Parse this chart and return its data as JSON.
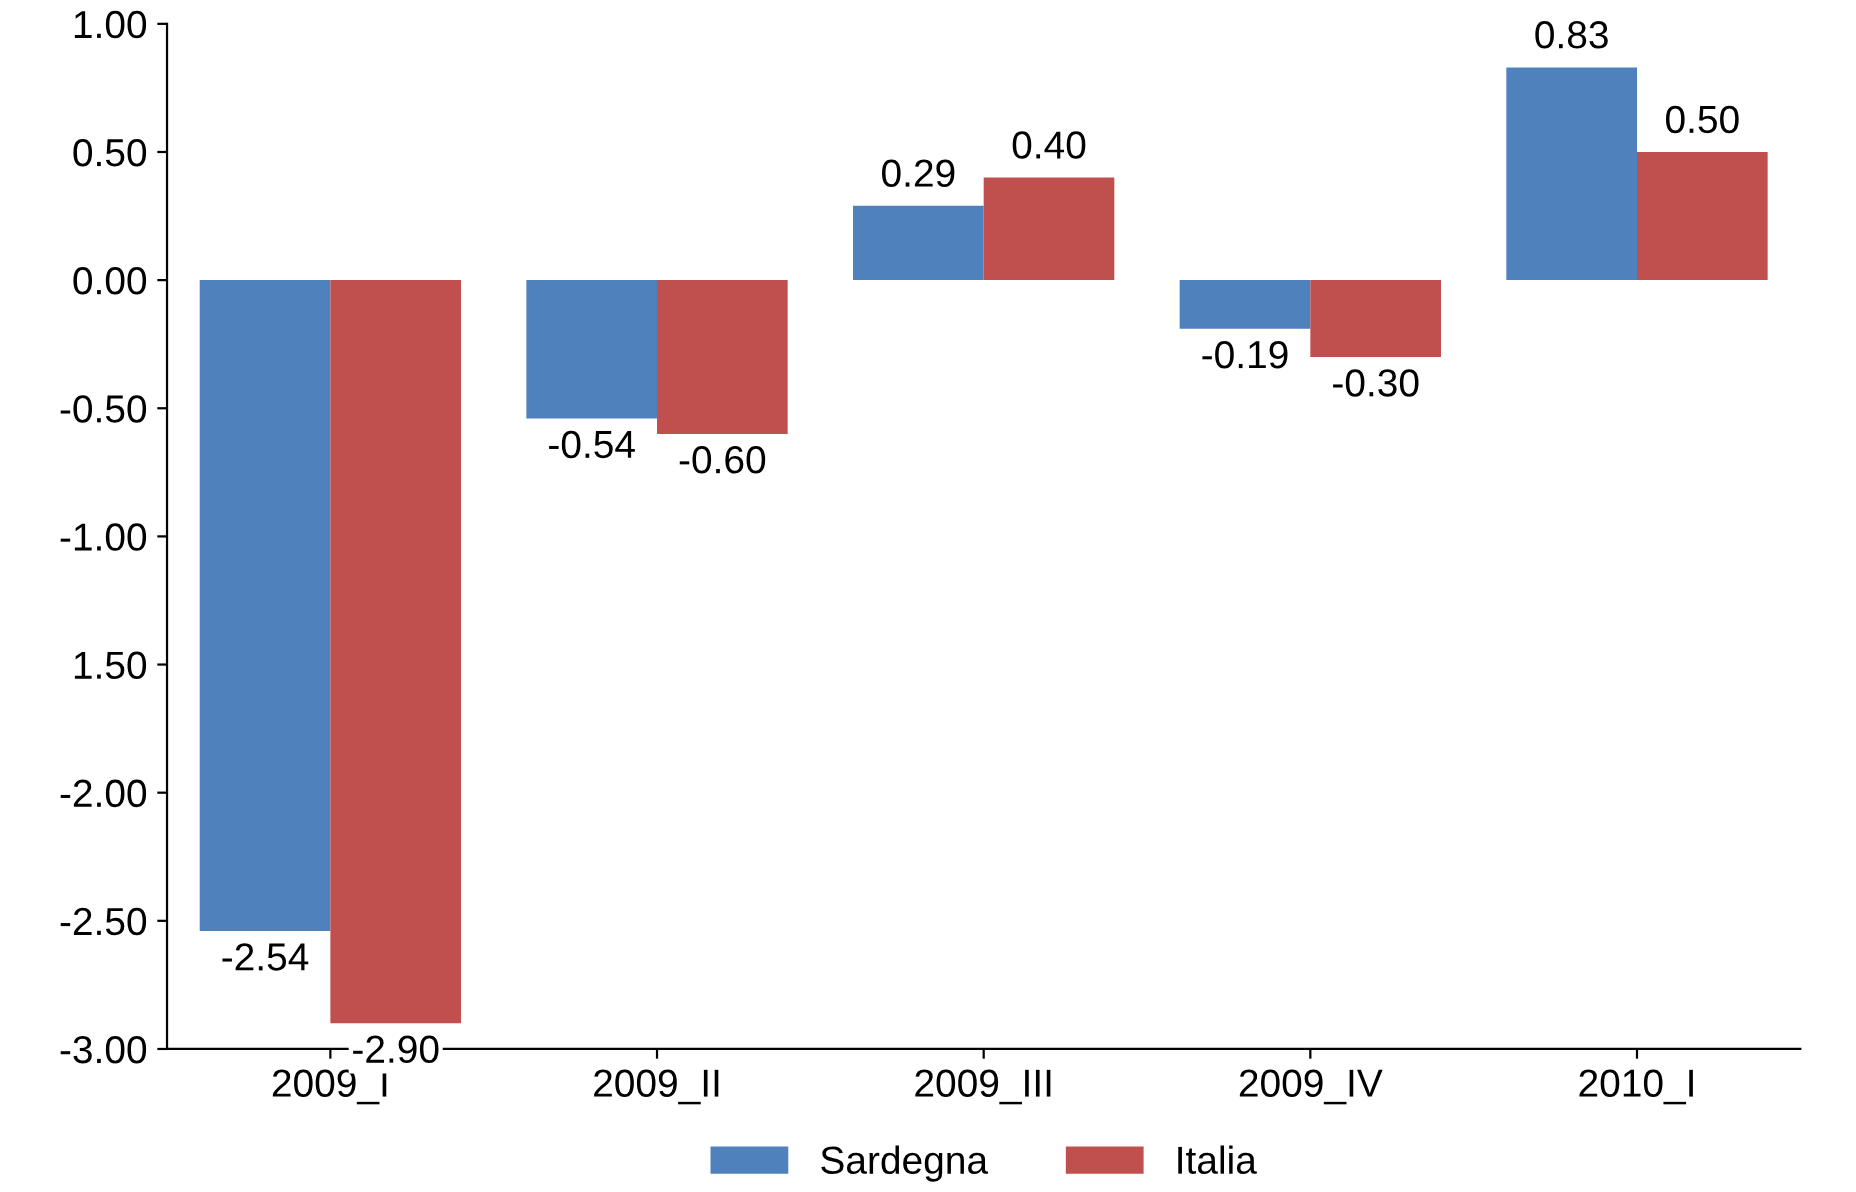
{
  "chart_data": {
    "type": "bar",
    "categories": [
      "2009_I",
      "2009_II",
      "2009_III",
      "2009_IV",
      "2010_I"
    ],
    "series": [
      {
        "name": "Sardegna",
        "color": "#4f81bd",
        "values": [
          -2.54,
          -0.54,
          0.29,
          -0.19,
          0.83
        ],
        "value_labels": [
          "-2.54",
          "-0.54",
          "0.29",
          "-0.19",
          "0.83"
        ]
      },
      {
        "name": "Italia",
        "color": "#c0504d",
        "values": [
          -2.9,
          -0.6,
          0.4,
          -0.3,
          0.5
        ],
        "value_labels": [
          "-2.90",
          "-0.60",
          "0.40",
          "-0.30",
          "0.50"
        ]
      }
    ],
    "ylim": [
      -3.0,
      1.0
    ],
    "yticks": [
      {
        "value": 1.0,
        "label": "1.00"
      },
      {
        "value": 0.5,
        "label": "0.50"
      },
      {
        "value": 0.0,
        "label": "0.00"
      },
      {
        "value": -0.5,
        "label": "-0.50"
      },
      {
        "value": -1.0,
        "label": "-1.00"
      },
      {
        "value": -1.5,
        "label": "1.50"
      },
      {
        "value": -2.0,
        "label": "-2.00"
      },
      {
        "value": -2.5,
        "label": "-2.50"
      },
      {
        "value": -3.0,
        "label": "-3.00"
      }
    ],
    "legend": "bottom"
  }
}
